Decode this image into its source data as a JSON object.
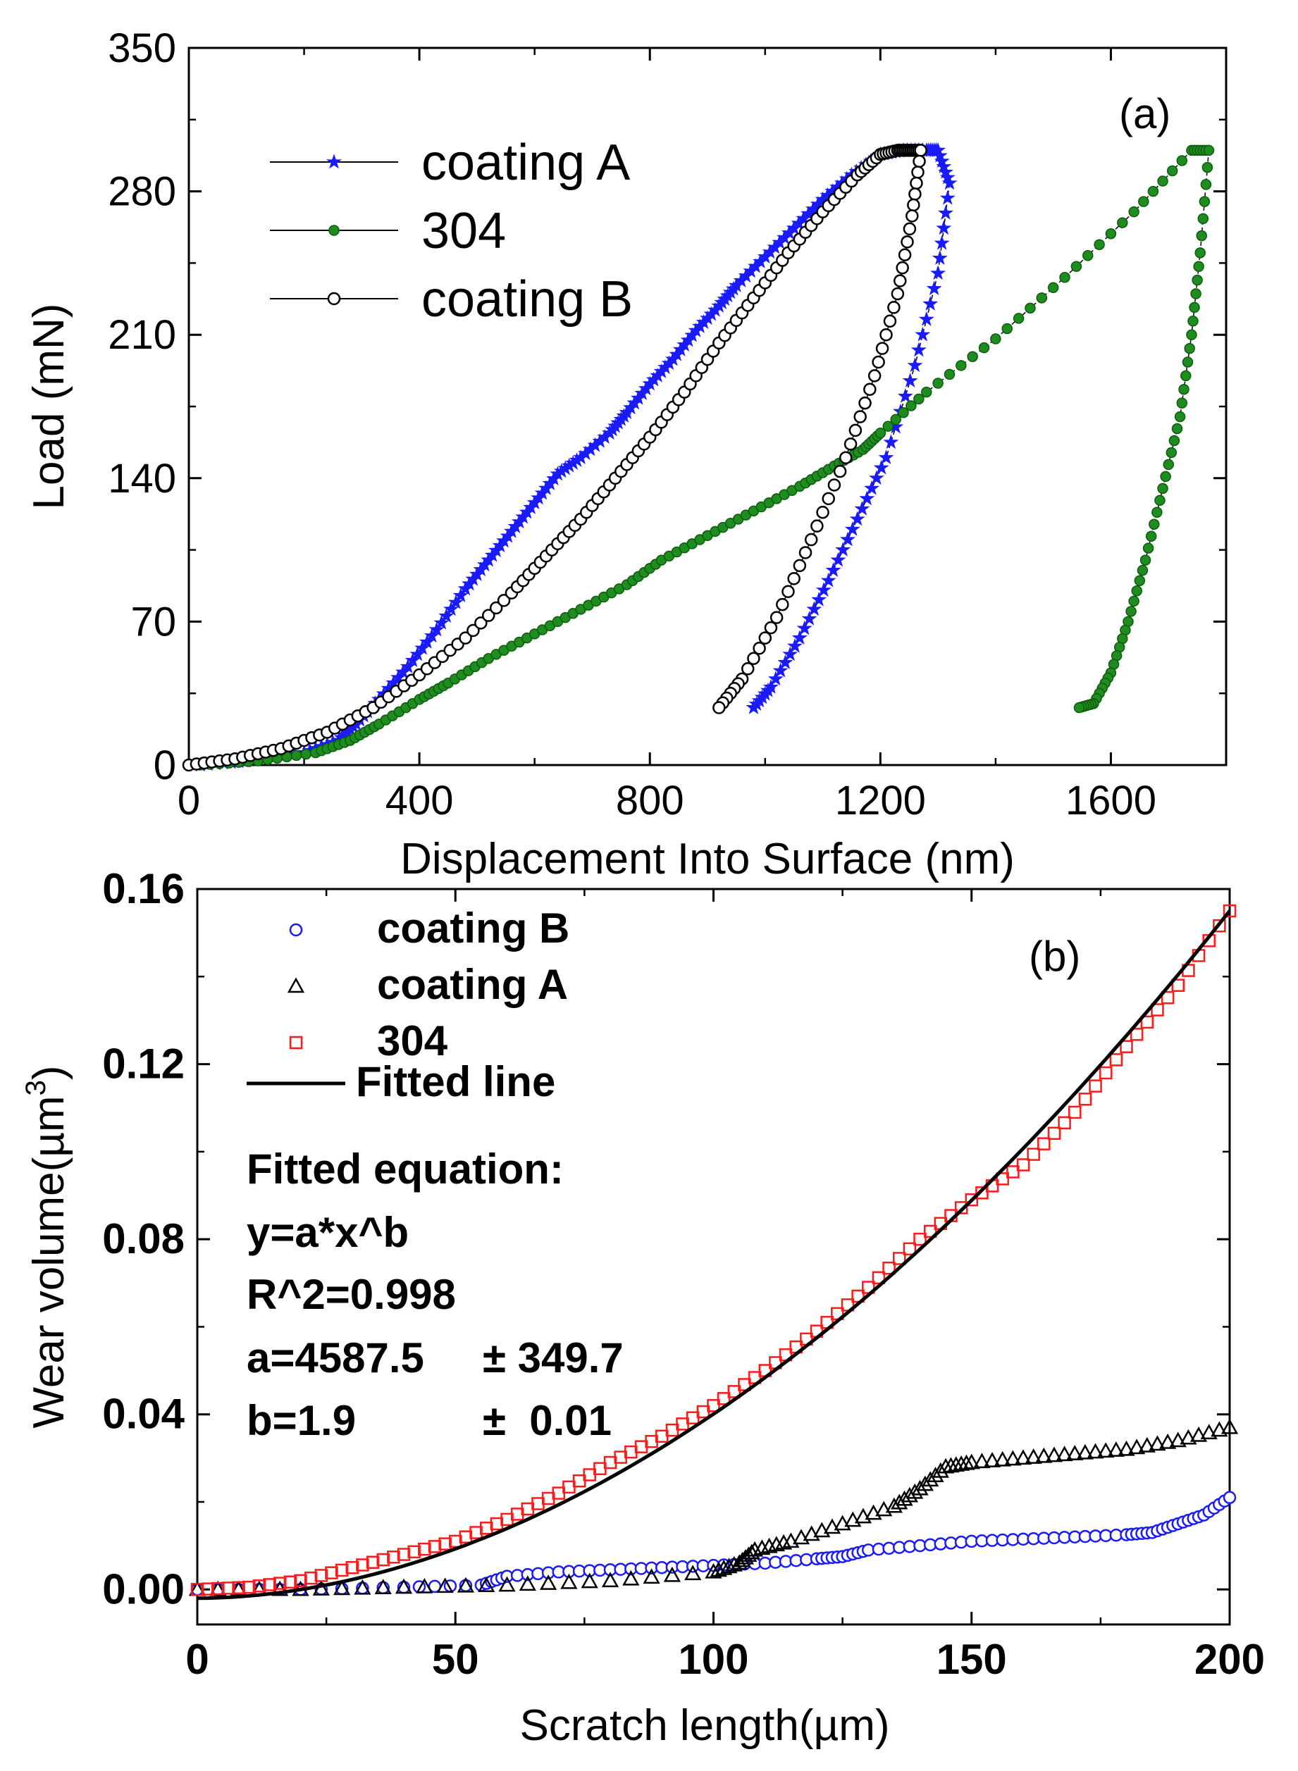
{
  "chart_data": [
    {
      "type": "line",
      "panel_label": "(a)",
      "xlabel": "Displacement Into Surface (nm)",
      "ylabel": "Load (mN)",
      "xlim": [
        0,
        1800
      ],
      "ylim": [
        0,
        350
      ],
      "xticks": [
        "0",
        "400",
        "800",
        "1200",
        "1600"
      ],
      "xtick_values": [
        0,
        400,
        800,
        1200,
        1600
      ],
      "yticks": [
        "0",
        "70",
        "140",
        "210",
        "280",
        "350"
      ],
      "ytick_values": [
        0,
        70,
        140,
        210,
        280,
        350
      ],
      "legend_position": "top-left",
      "legend": [
        "coating A",
        "304",
        "coating B"
      ],
      "series": [
        {
          "name": "coating A",
          "color": "#1a1aff",
          "marker": "star",
          "x": [
            20,
            100,
            200,
            260,
            290,
            330,
            380,
            430,
            480,
            520,
            560,
            600,
            640,
            680,
            730,
            760,
            800,
            840,
            880,
            920,
            950,
            1000,
            1050,
            1100,
            1150,
            1200,
            1240,
            1280,
            1300,
            1320,
            1300,
            1260,
            1210,
            1160,
            1110,
            1060,
            1010,
            980
          ],
          "y": [
            0,
            2,
            6,
            12,
            20,
            32,
            48,
            66,
            86,
            100,
            114,
            128,
            142,
            150,
            162,
            172,
            186,
            198,
            212,
            224,
            234,
            248,
            262,
            276,
            288,
            298,
            300,
            300,
            300,
            284,
            240,
            195,
            150,
            120,
            90,
            62,
            38,
            28
          ]
        },
        {
          "name": "304",
          "color": "#1e8c1e",
          "marker": "circle-filled",
          "x": [
            20,
            120,
            220,
            280,
            330,
            400,
            450,
            520,
            600,
            680,
            760,
            820,
            900,
            980,
            1060,
            1120,
            1170,
            1200,
            1280,
            1400,
            1520,
            1640,
            1740,
            1770,
            1755,
            1740,
            1720,
            1690,
            1660,
            1630,
            1600,
            1570,
            1545
          ],
          "y": [
            0,
            2,
            6,
            12,
            20,
            32,
            40,
            52,
            64,
            76,
            88,
            100,
            112,
            124,
            136,
            146,
            154,
            162,
            182,
            208,
            238,
            270,
            300,
            300,
            250,
            210,
            170,
            135,
            100,
            70,
            45,
            30,
            28
          ]
        },
        {
          "name": "coating B",
          "color": "#000000",
          "marker": "circle-open",
          "x": [
            0,
            80,
            160,
            240,
            320,
            400,
            480,
            560,
            620,
            680,
            740,
            800,
            860,
            920,
            980,
            1040,
            1100,
            1160,
            1200,
            1230,
            1250,
            1270,
            1255,
            1230,
            1190,
            1140,
            1080,
            1020,
            960,
            920
          ],
          "y": [
            0,
            3,
            8,
            16,
            28,
            44,
            62,
            84,
            102,
            120,
            140,
            160,
            182,
            206,
            228,
            250,
            270,
            288,
            298,
            300,
            300,
            300,
            268,
            230,
            190,
            150,
            110,
            72,
            42,
            28
          ]
        }
      ]
    },
    {
      "type": "scatter",
      "panel_label": "(b)",
      "xlabel": "Scratch length(µm)",
      "ylabel": "Wear volume(µm",
      "ylabel_superscript": "3",
      "ylabel_close": ")",
      "xlim": [
        0,
        200
      ],
      "ylim": [
        -0.008,
        0.16
      ],
      "xticks": [
        "0",
        "50",
        "100",
        "150",
        "200"
      ],
      "xtick_values": [
        0,
        50,
        100,
        150,
        200
      ],
      "yticks": [
        "0.00",
        "0.04",
        "0.08",
        "0.12",
        "0.16"
      ],
      "ytick_values": [
        0.0,
        0.04,
        0.08,
        0.12,
        0.16
      ],
      "legend_position": "top-left",
      "legend": [
        "coating B",
        "coating A",
        "304",
        "Fitted line"
      ],
      "series": [
        {
          "name": "coating B",
          "color": "#1a1aff",
          "marker": "circle-open",
          "x": [
            0,
            20,
            40,
            55,
            60,
            70,
            80,
            90,
            100,
            110,
            120,
            125,
            130,
            140,
            150,
            160,
            170,
            180,
            185,
            190,
            195,
            200
          ],
          "y": [
            0.0,
            0.0,
            0.0005,
            0.001,
            0.003,
            0.004,
            0.0045,
            0.005,
            0.0055,
            0.006,
            0.007,
            0.0075,
            0.009,
            0.01,
            0.011,
            0.0115,
            0.012,
            0.0125,
            0.013,
            0.015,
            0.017,
            0.021
          ]
        },
        {
          "name": "coating A",
          "color": "#000000",
          "marker": "triangle-open",
          "x": [
            0,
            20,
            40,
            60,
            80,
            100,
            105,
            108,
            115,
            125,
            135,
            140,
            145,
            150,
            160,
            170,
            180,
            190,
            200
          ],
          "y": [
            0.0,
            0.0,
            0.0005,
            0.001,
            0.002,
            0.004,
            0.006,
            0.009,
            0.011,
            0.015,
            0.019,
            0.023,
            0.028,
            0.029,
            0.03,
            0.031,
            0.032,
            0.034,
            0.037
          ]
        },
        {
          "name": "304",
          "color": "#ff1a1a",
          "marker": "square-open",
          "x": [
            0,
            10,
            20,
            30,
            40,
            50,
            60,
            70,
            80,
            90,
            100,
            110,
            120,
            130,
            140,
            150,
            160,
            170,
            180,
            190,
            200
          ],
          "y": [
            0.0,
            0.0005,
            0.002,
            0.005,
            0.008,
            0.011,
            0.016,
            0.022,
            0.029,
            0.035,
            0.042,
            0.05,
            0.059,
            0.069,
            0.08,
            0.089,
            0.097,
            0.109,
            0.124,
            0.138,
            0.155
          ]
        },
        {
          "name": "Fitted line",
          "color": "#000000",
          "marker": "line",
          "a": 4587.5,
          "b": 1.9,
          "y_offset": -0.002
        }
      ],
      "annotation": {
        "title": "Fitted equation:",
        "equation": "y=a*x^b",
        "r2": "R^2=0.998",
        "a_label": "a=4587.5",
        "a_err": "± 349.7",
        "b_label": "b=1.9",
        "b_err": "±  0.01"
      }
    }
  ]
}
